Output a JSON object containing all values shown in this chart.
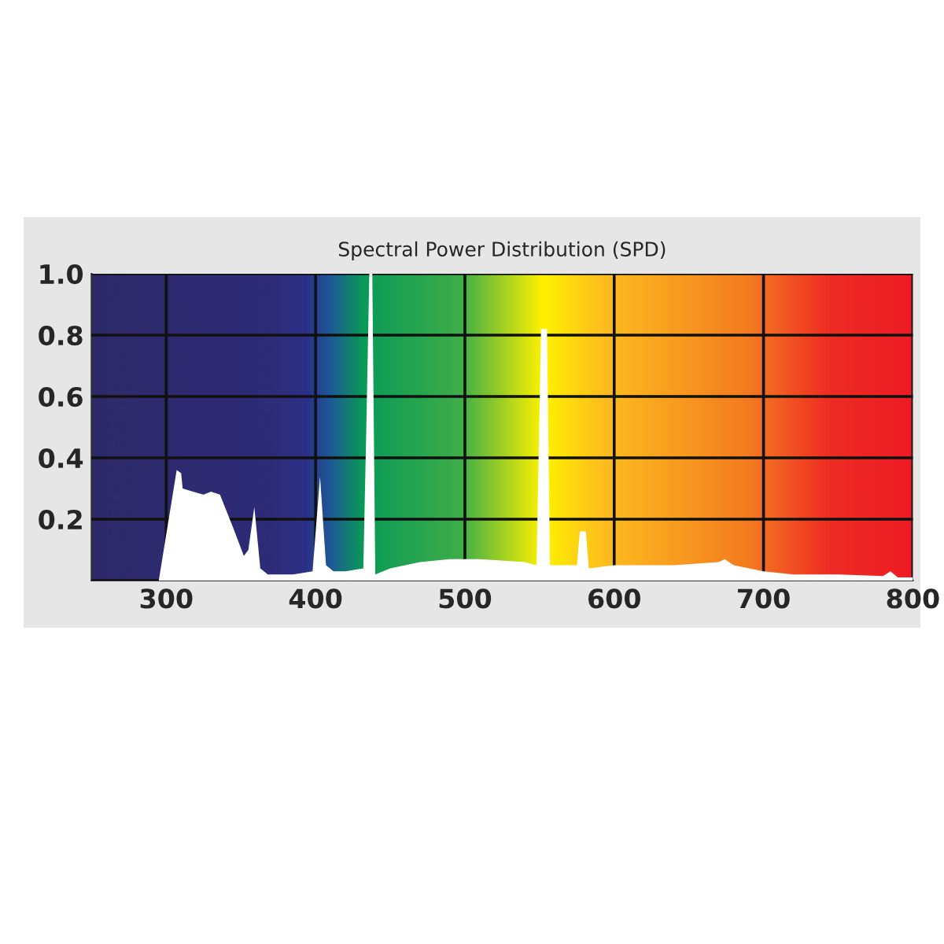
{
  "chart_data": {
    "type": "area",
    "title": "Spectral Power Distribution (SPD)",
    "series": [
      {
        "color": "#ffffff",
        "x": [
          295,
          305,
          307,
          310,
          311,
          318,
          325,
          330,
          336,
          345,
          352,
          355,
          359,
          363,
          368,
          385,
          398,
          403,
          407,
          412,
          420,
          432,
          434,
          436,
          438,
          440,
          450,
          470,
          490,
          510,
          540,
          548,
          551,
          555,
          557,
          575,
          577,
          581,
          583,
          600,
          640,
          670,
          674,
          680,
          700,
          720,
          750,
          780,
          785,
          790,
          800
        ],
        "values": [
          0,
          0.3,
          0.36,
          0.35,
          0.3,
          0.29,
          0.28,
          0.29,
          0.28,
          0.17,
          0.08,
          0.1,
          0.24,
          0.04,
          0.02,
          0.02,
          0.03,
          0.34,
          0.05,
          0.03,
          0.03,
          0.04,
          0.5,
          1.0,
          1.0,
          0.02,
          0.04,
          0.06,
          0.07,
          0.07,
          0.06,
          0.05,
          0.82,
          0.82,
          0.05,
          0.05,
          0.16,
          0.16,
          0.04,
          0.05,
          0.05,
          0.06,
          0.07,
          0.05,
          0.03,
          0.02,
          0.02,
          0.015,
          0.03,
          0.01,
          0.01
        ]
      }
    ],
    "xlim": [
      250,
      800
    ],
    "xticks": [
      300,
      400,
      500,
      600,
      700,
      800
    ],
    "ylim": [
      0,
      1.0
    ],
    "yticks": [
      {
        "value": 0,
        "label": null
      },
      0.2,
      0.4,
      0.6,
      0.8,
      {
        "value": 1.0,
        "label": "1.0"
      }
    ],
    "grid": true
  }
}
